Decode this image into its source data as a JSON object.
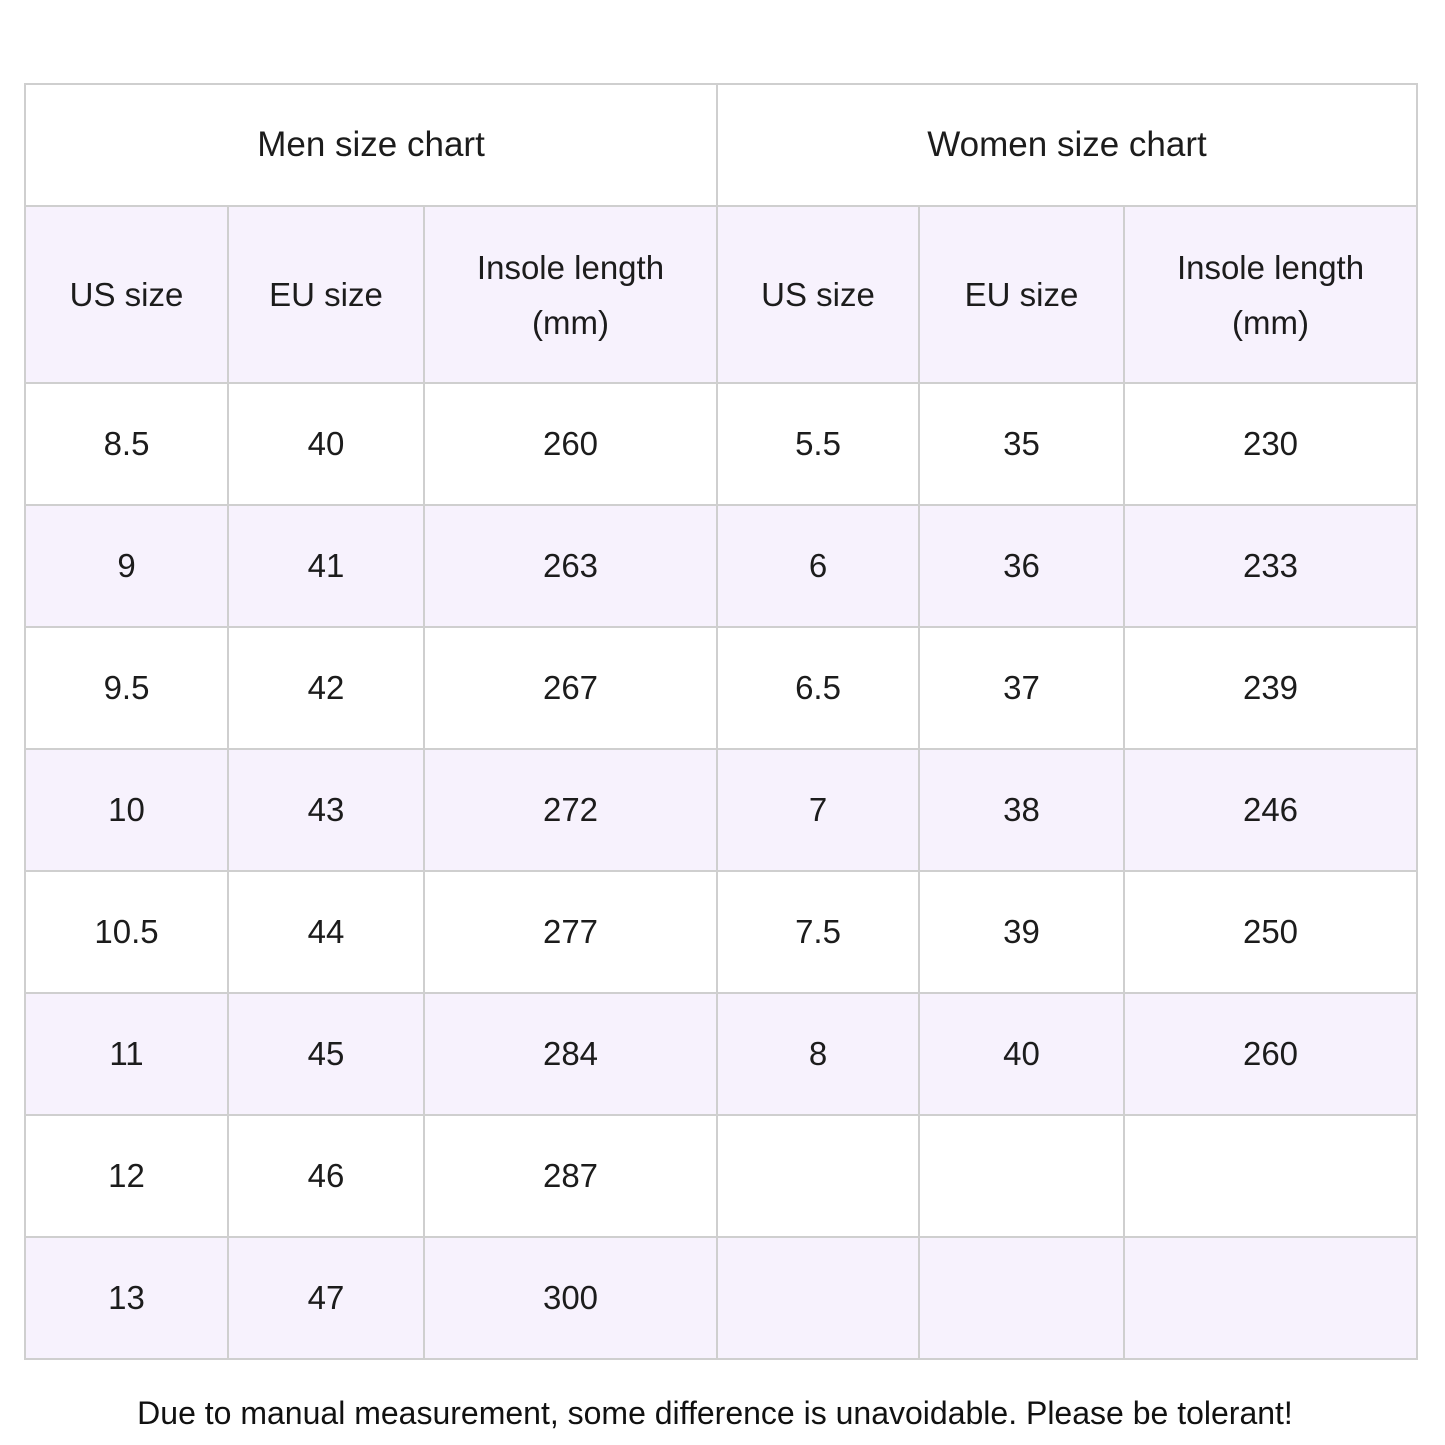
{
  "men": {
    "title": "Men size chart",
    "headers": [
      "US size",
      "EU size",
      "Insole length (mm)"
    ],
    "rows": [
      [
        "8.5",
        "40",
        "260"
      ],
      [
        "9",
        "41",
        "263"
      ],
      [
        "9.5",
        "42",
        "267"
      ],
      [
        "10",
        "43",
        "272"
      ],
      [
        "10.5",
        "44",
        "277"
      ],
      [
        "11",
        "45",
        "284"
      ],
      [
        "12",
        "46",
        "287"
      ],
      [
        "13",
        "47",
        "300"
      ]
    ]
  },
  "women": {
    "title": "Women size chart",
    "headers": [
      "US size",
      "EU size",
      "Insole length (mm)"
    ],
    "rows": [
      [
        "5.5",
        "35",
        "230"
      ],
      [
        "6",
        "36",
        "233"
      ],
      [
        "6.5",
        "37",
        "239"
      ],
      [
        "7",
        "38",
        "246"
      ],
      [
        "7.5",
        "39",
        "250"
      ],
      [
        "8",
        "40",
        "260"
      ],
      [
        "",
        "",
        ""
      ],
      [
        "",
        "",
        ""
      ]
    ]
  },
  "note": "Due to manual measurement, some difference is unavoidable. Please be tolerant!",
  "colors": {
    "stripe": "#f7f2fd",
    "border": "#cfcfcf"
  }
}
